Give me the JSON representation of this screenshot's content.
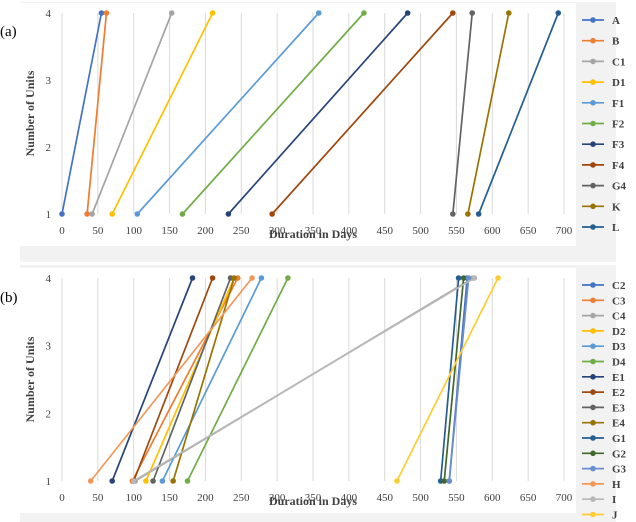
{
  "chart_data": [
    {
      "panel_label": "(a)",
      "type": "line",
      "xlabel": "Duration in Days",
      "ylabel": "Number of Units",
      "xlim": [
        0,
        700
      ],
      "ylim": [
        1,
        4
      ],
      "xticks": [
        0,
        50,
        100,
        150,
        200,
        250,
        300,
        350,
        400,
        450,
        500,
        550,
        600,
        650,
        700
      ],
      "yticks": [
        1,
        2,
        3,
        4
      ],
      "grid": "vertical",
      "legend": "right",
      "series": [
        {
          "name": "A",
          "color": "#4472c4",
          "x": [
            0,
            55
          ],
          "y": [
            1,
            4
          ]
        },
        {
          "name": "B",
          "color": "#ed7d31",
          "x": [
            35,
            62
          ],
          "y": [
            1,
            4
          ]
        },
        {
          "name": "C1",
          "color": "#a5a5a5",
          "x": [
            42,
            153
          ],
          "y": [
            1,
            4
          ]
        },
        {
          "name": "D1",
          "color": "#ffc000",
          "x": [
            70,
            210
          ],
          "y": [
            1,
            4
          ]
        },
        {
          "name": "F1",
          "color": "#5b9bd5",
          "x": [
            105,
            358
          ],
          "y": [
            1,
            4
          ]
        },
        {
          "name": "F2",
          "color": "#70ad47",
          "x": [
            168,
            421
          ],
          "y": [
            1,
            4
          ]
        },
        {
          "name": "F3",
          "color": "#264478",
          "x": [
            232,
            482
          ],
          "y": [
            1,
            4
          ]
        },
        {
          "name": "F4",
          "color": "#9e480e",
          "x": [
            293,
            545
          ],
          "y": [
            1,
            4
          ]
        },
        {
          "name": "G4",
          "color": "#636363",
          "x": [
            545,
            572
          ],
          "y": [
            1,
            4
          ]
        },
        {
          "name": "K",
          "color": "#997300",
          "x": [
            566,
            623
          ],
          "y": [
            1,
            4
          ]
        },
        {
          "name": "L",
          "color": "#255e91",
          "x": [
            581,
            692
          ],
          "y": [
            1,
            4
          ]
        }
      ]
    },
    {
      "panel_label": "(b)",
      "type": "line",
      "xlabel": "Duration in Days",
      "ylabel": "Number of Units",
      "xlim": [
        0,
        700
      ],
      "ylim": [
        1,
        4
      ],
      "xticks": [
        0,
        50,
        100,
        150,
        200,
        250,
        300,
        350,
        400,
        450,
        500,
        550,
        600,
        650,
        700
      ],
      "yticks": [
        1,
        2,
        3,
        4
      ],
      "grid": "vertical",
      "legend": "right",
      "series": [
        {
          "name": "C2",
          "color": "#4472c4",
          "x": [
            540,
            565
          ],
          "y": [
            1,
            4
          ]
        },
        {
          "name": "C3",
          "color": "#ed7d31",
          "x": [
            98,
            245
          ],
          "y": [
            1,
            4
          ]
        },
        {
          "name": "C4",
          "color": "#a5a5a5",
          "x": [
            102,
            573
          ],
          "y": [
            1,
            4
          ]
        },
        {
          "name": "D2",
          "color": "#ffc000",
          "x": [
            117,
            240
          ],
          "y": [
            1,
            4
          ]
        },
        {
          "name": "D3",
          "color": "#5b9bd5",
          "x": [
            140,
            278
          ],
          "y": [
            1,
            4
          ]
        },
        {
          "name": "D4",
          "color": "#70ad47",
          "x": [
            175,
            315
          ],
          "y": [
            1,
            4
          ]
        },
        {
          "name": "E1",
          "color": "#264478",
          "x": [
            70,
            182
          ],
          "y": [
            1,
            4
          ]
        },
        {
          "name": "E2",
          "color": "#9e480e",
          "x": [
            100,
            210
          ],
          "y": [
            1,
            4
          ]
        },
        {
          "name": "E3",
          "color": "#636363",
          "x": [
            127,
            235
          ],
          "y": [
            1,
            4
          ]
        },
        {
          "name": "E4",
          "color": "#997300",
          "x": [
            155,
            240
          ],
          "y": [
            1,
            4
          ]
        },
        {
          "name": "G1",
          "color": "#255e91",
          "x": [
            528,
            553
          ],
          "y": [
            1,
            4
          ]
        },
        {
          "name": "G2",
          "color": "#43682b",
          "x": [
            533,
            560
          ],
          "y": [
            1,
            4
          ]
        },
        {
          "name": "G3",
          "color": "#698ed0",
          "x": [
            540,
            567
          ],
          "y": [
            1,
            4
          ]
        },
        {
          "name": "H",
          "color": "#f1975a",
          "x": [
            40,
            265
          ],
          "y": [
            1,
            4
          ]
        },
        {
          "name": "I",
          "color": "#b7b7b7",
          "x": [
            100,
            575
          ],
          "y": [
            1,
            4
          ]
        },
        {
          "name": "J",
          "color": "#ffcd33",
          "x": [
            467,
            608
          ],
          "y": [
            1,
            4
          ]
        }
      ]
    }
  ]
}
